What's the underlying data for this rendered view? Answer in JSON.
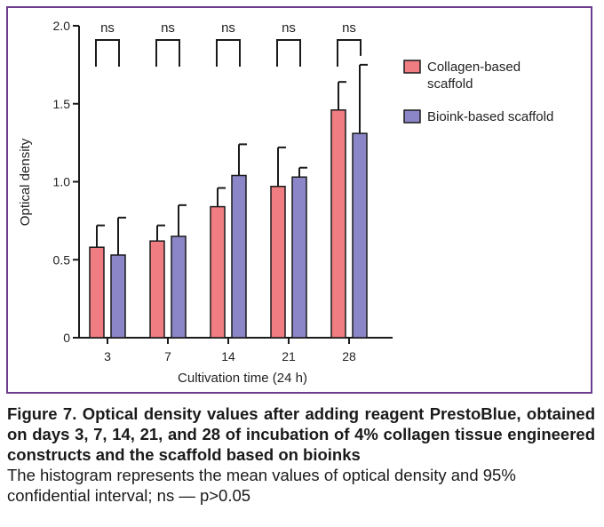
{
  "chart_data": {
    "type": "bar",
    "categories": [
      "3",
      "7",
      "14",
      "21",
      "28"
    ],
    "series": [
      {
        "name": "Collagen-based scaffold",
        "legend_lines": [
          "Collagen-based",
          "scaffold"
        ],
        "color": "#f07d82",
        "values": [
          0.58,
          0.62,
          0.84,
          0.97,
          1.46
        ],
        "upper_error": [
          0.72,
          0.72,
          0.96,
          1.22,
          1.64
        ]
      },
      {
        "name": "Bioink-based scaffold",
        "legend_lines": [
          "Bioink-based scaffold"
        ],
        "color": "#8b86c8",
        "values": [
          0.53,
          0.65,
          1.04,
          1.03,
          1.31
        ],
        "upper_error": [
          0.77,
          0.85,
          1.24,
          1.09,
          1.75
        ]
      }
    ],
    "significance": [
      "ns",
      "ns",
      "ns",
      "ns",
      "ns"
    ],
    "ylabel": "Optical density",
    "xlabel": "Cultivation time (24 h)",
    "ylim": [
      0,
      2.0
    ],
    "yticks": [
      0,
      0.5,
      1.0,
      1.5,
      2.0
    ],
    "ytick_labels": [
      "0",
      "0.5",
      "1.0",
      "1.5",
      "2.0"
    ],
    "legend_position": "right",
    "grid": false
  },
  "caption": {
    "title": "Figure 7. Optical density values after adding reagent PrestoBlue, obtained on days 3, 7, 14, 21, and 28 of incubation of 4% collagen tissue engineered constructs and the scaffold based on bioinks",
    "note": "The histogram represents the mean values of optical density and 95% confidential interval; ns — p>0.05"
  },
  "colors": {
    "frame_border": "#6a3d90",
    "axis": "#1a1a1a"
  }
}
